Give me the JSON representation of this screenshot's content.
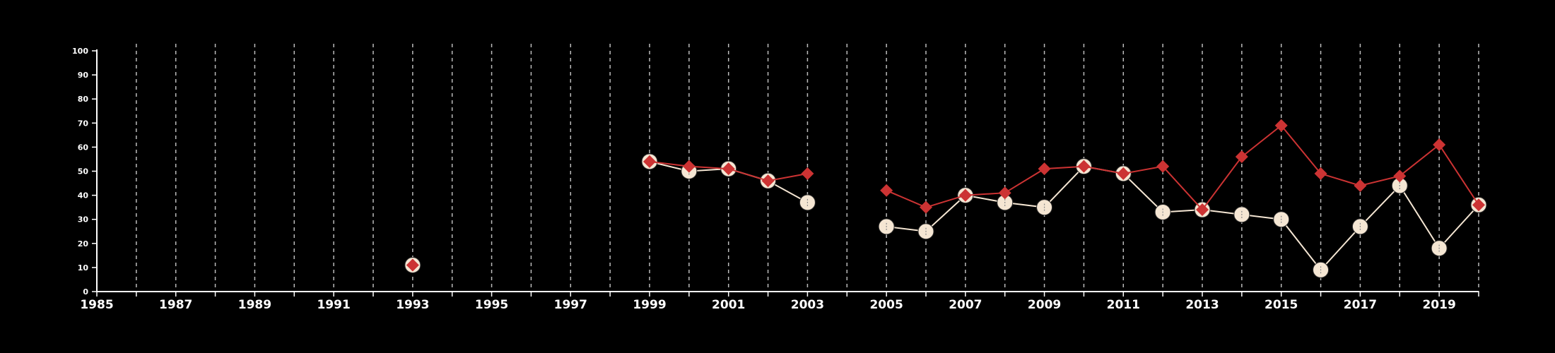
{
  "chart_data": {
    "type": "line",
    "title": "",
    "xlabel": "",
    "ylabel": "",
    "xlim": [
      1985,
      2020
    ],
    "ylim": [
      0,
      100
    ],
    "x_ticks": [
      1985,
      1987,
      1989,
      1991,
      1993,
      1995,
      1997,
      1999,
      2001,
      2003,
      2005,
      2007,
      2009,
      2011,
      2013,
      2015,
      2017,
      2019
    ],
    "y_ticks": [
      0,
      10,
      20,
      30,
      40,
      50,
      60,
      70,
      80,
      90,
      100
    ],
    "grid": "vertical dashed lines at every year",
    "legend": "none",
    "series": [
      {
        "marker": "circle",
        "color": "#f5e6d3",
        "points": [
          [
            1993,
            11
          ],
          [
            1999,
            54
          ],
          [
            2000,
            50
          ],
          [
            2001,
            51
          ],
          [
            2002,
            46
          ],
          [
            2003,
            37
          ],
          [
            2005,
            27
          ],
          [
            2006,
            25
          ],
          [
            2007,
            40
          ],
          [
            2008,
            37
          ],
          [
            2009,
            35
          ],
          [
            2010,
            52
          ],
          [
            2011,
            49
          ],
          [
            2012,
            33
          ],
          [
            2013,
            34
          ],
          [
            2014,
            32
          ],
          [
            2015,
            30
          ],
          [
            2016,
            9
          ],
          [
            2017,
            27
          ],
          [
            2018,
            44
          ],
          [
            2019,
            18
          ],
          [
            2020,
            36
          ]
        ]
      },
      {
        "marker": "diamond",
        "color": "#cc3333",
        "points": [
          [
            1993,
            11
          ],
          [
            1999,
            54
          ],
          [
            2000,
            52
          ],
          [
            2001,
            51
          ],
          [
            2002,
            46
          ],
          [
            2003,
            49
          ],
          [
            2005,
            42
          ],
          [
            2006,
            35
          ],
          [
            2007,
            40
          ],
          [
            2008,
            41
          ],
          [
            2009,
            51
          ],
          [
            2010,
            52
          ],
          [
            2011,
            49
          ],
          [
            2012,
            52
          ],
          [
            2013,
            34
          ],
          [
            2014,
            56
          ],
          [
            2015,
            69
          ],
          [
            2016,
            49
          ],
          [
            2017,
            44
          ],
          [
            2018,
            48
          ],
          [
            2019,
            61
          ],
          [
            2020,
            36
          ]
        ]
      }
    ]
  }
}
